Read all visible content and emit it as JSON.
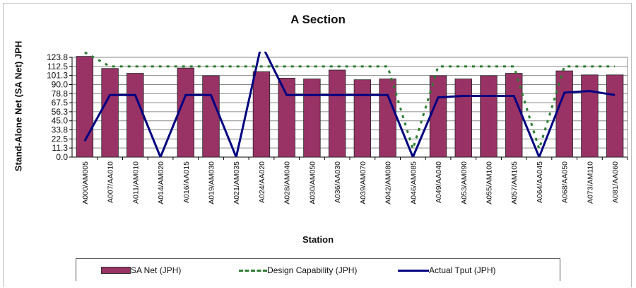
{
  "chart_data": {
    "type": "bar",
    "title": "A Section",
    "xlabel": "Station",
    "ylabel": "Stand-Alone Net (SA Net) JPH",
    "ylim": [
      0,
      123.8
    ],
    "yticks": [
      "0.0",
      "11.3",
      "22.5",
      "33.8",
      "45.0",
      "56.3",
      "67.5",
      "78.8",
      "90.0",
      "101.3",
      "112.5",
      "123.8"
    ],
    "grid": true,
    "legend_position": "bottom",
    "categories": [
      "A000/AM005",
      "A007/AA010",
      "A011/AM010",
      "A014/AM020",
      "A016/AA015",
      "A019/AM030",
      "A021/AM035",
      "A024/AA020",
      "A028/AM040",
      "A030/AM050",
      "A036/AA030",
      "A039/AM070",
      "A042/AM080",
      "A046/AM085",
      "A049/AA040",
      "A053/AM090",
      "A055/AM100",
      "A057/AM105",
      "A064/AA045",
      "A068/AA050",
      "A073/AM110",
      "A081/AA060"
    ],
    "series": [
      {
        "name": "SA Net (JPH)",
        "type": "bar",
        "color": "#993366",
        "values": [
          125,
          110,
          104,
          0,
          110.5,
          101,
          0,
          106,
          98,
          97,
          108,
          96,
          97,
          0,
          101,
          97,
          101,
          104,
          0,
          107,
          102,
          102
        ]
      },
      {
        "name": "Design Capability (JPH)",
        "type": "line",
        "style": "dashed",
        "color": "#2e7d32",
        "values": [
          130,
          112.5,
          112.5,
          112.5,
          112.5,
          112.5,
          112.5,
          112.5,
          112.5,
          112.5,
          112.5,
          112.5,
          112.5,
          10,
          112.5,
          112.5,
          112.5,
          112.5,
          10,
          112.5,
          112.5,
          112.5
        ]
      },
      {
        "name": "Actual Tput (JPH)",
        "type": "line",
        "color": "#000080",
        "values": [
          20,
          77,
          77,
          0,
          77,
          77,
          0,
          140,
          77,
          77,
          77,
          77,
          77,
          0,
          74,
          76,
          76,
          76,
          0,
          80,
          82,
          77
        ]
      }
    ]
  }
}
